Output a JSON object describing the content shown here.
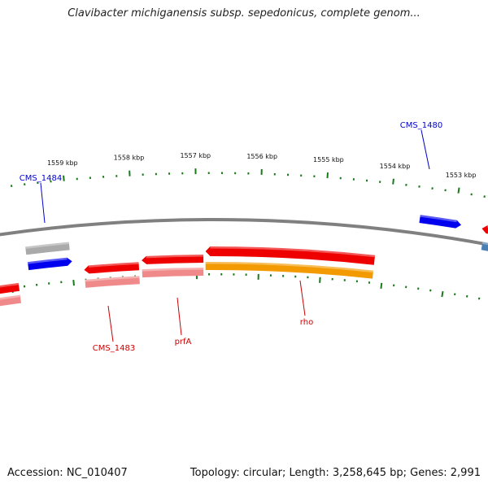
{
  "title": "Clavibacter michiganensis subsp. sepedonicus, complete genom...",
  "footer": {
    "accession": "Accession: NC_010407",
    "stats": "Topology: circular; Length: 3,258,645 bp; Genes: 2,991"
  },
  "colors": {
    "backbone": "#808080",
    "tick": "#1a7a1a",
    "forward_gene": "#0000ee",
    "reverse_gene": "#ee0000",
    "reverse_gene_pale": "#f08a8a",
    "rho_track": "#f29a00",
    "grey_feature": "#aaaaaa",
    "steel_feature": "#4a80b4",
    "label_blue": "#0000cc",
    "label_red": "#cc0000"
  },
  "scale_ticks": [
    {
      "label": "1553 kbp"
    },
    {
      "label": "1554 kbp"
    },
    {
      "label": "1555 kbp"
    },
    {
      "label": "1556 kbp"
    },
    {
      "label": "1557 kbp"
    },
    {
      "label": "1558 kbp"
    },
    {
      "label": "1559 kbp"
    }
  ],
  "gene_labels": [
    {
      "name": "CMS_1480",
      "strand": "forward"
    },
    {
      "name": "CMS_1484",
      "strand": "forward"
    },
    {
      "name": "CMS_1483",
      "strand": "reverse"
    },
    {
      "name": "prfA",
      "strand": "reverse"
    },
    {
      "name": "rho",
      "strand": "reverse"
    }
  ]
}
